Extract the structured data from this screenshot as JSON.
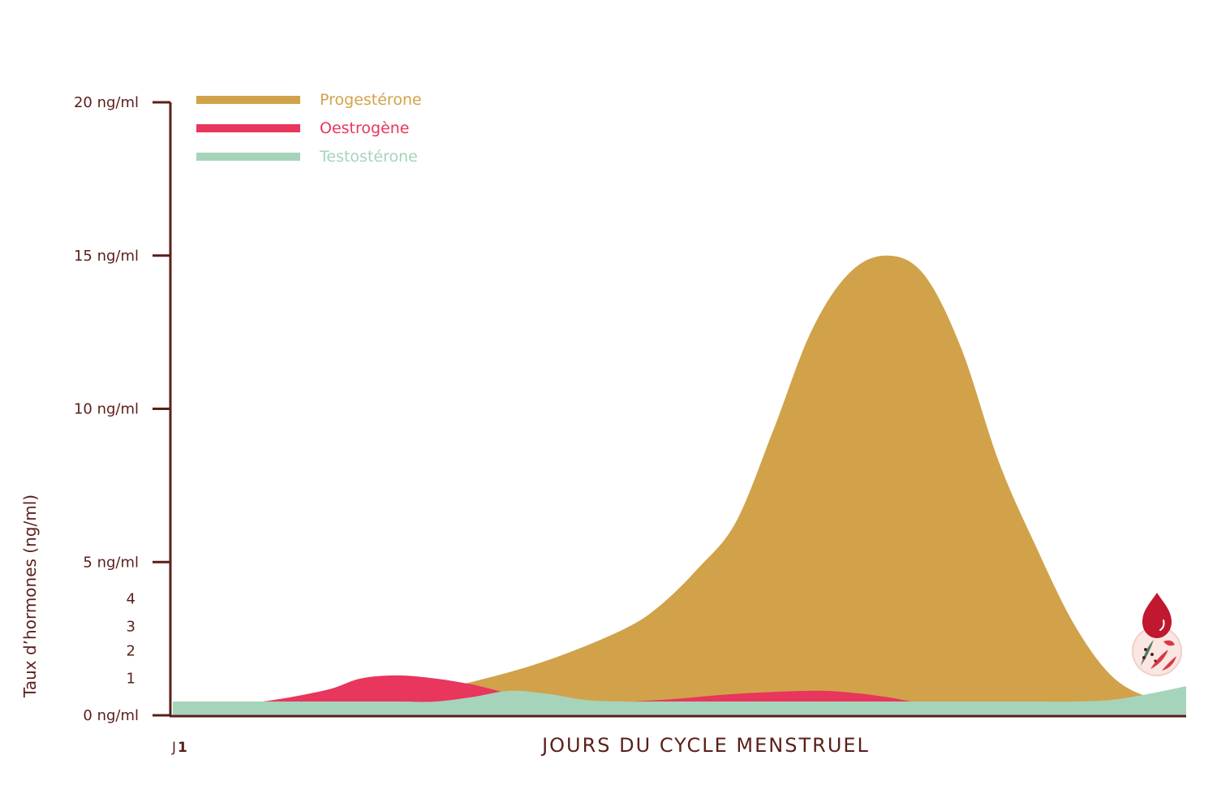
{
  "chart_data": {
    "type": "area",
    "xlabel": "JOURS DU CYCLE MENSTRUEL",
    "ylabel": "Taux d’hormones (ng/ml)",
    "ylim": [
      0,
      20
    ],
    "xlim": [
      1,
      28
    ],
    "start_day_prefix": "J",
    "start_day": "1",
    "y_ticks": [
      {
        "value": 0,
        "label": "0 ng/ml"
      },
      {
        "value": 5,
        "label": "5 ng/ml"
      },
      {
        "value": 10,
        "label": "10 ng/ml"
      },
      {
        "value": 15,
        "label": "15 ng/ml"
      },
      {
        "value": 20,
        "label": "20 ng/ml"
      }
    ],
    "y_minor_labels": [
      {
        "value": 1.2,
        "label": "1"
      },
      {
        "value": 2.1,
        "label": "2"
      },
      {
        "value": 2.9,
        "label": "3"
      },
      {
        "value": 3.8,
        "label": "4"
      }
    ],
    "legend_position": "top-left",
    "grid": false,
    "series": [
      {
        "name": "Progestérone",
        "color": "#d1a24a",
        "x": [
          1,
          3,
          5,
          7,
          9,
          11,
          13,
          14,
          15,
          16,
          17,
          18,
          19,
          20,
          21,
          22,
          23,
          24,
          25,
          26,
          27,
          28
        ],
        "y": [
          0.4,
          0.4,
          0.5,
          0.6,
          1.1,
          1.8,
          2.8,
          3.6,
          4.8,
          6.3,
          9.3,
          12.5,
          14.4,
          15.0,
          14.4,
          12.0,
          8.3,
          5.5,
          3.0,
          1.3,
          0.6,
          0.5
        ]
      },
      {
        "name": "Oestrogène",
        "color": "#e8365c",
        "x": [
          1,
          3,
          5,
          6,
          7,
          8,
          9,
          10,
          11,
          12,
          14,
          16,
          18,
          19,
          20,
          21,
          22,
          24,
          26,
          28
        ],
        "y": [
          0.4,
          0.4,
          0.8,
          1.2,
          1.3,
          1.2,
          1.0,
          0.7,
          0.5,
          0.4,
          0.5,
          0.7,
          0.8,
          0.75,
          0.6,
          0.4,
          0.4,
          0.4,
          0.4,
          0.5
        ]
      },
      {
        "name": "Testostérone",
        "color": "#a5d4bb",
        "x": [
          1,
          3,
          5,
          7,
          8,
          9,
          10,
          11,
          12,
          13,
          14,
          16,
          18,
          20,
          22,
          24,
          25,
          26,
          27,
          28
        ],
        "y": [
          0.45,
          0.45,
          0.45,
          0.45,
          0.45,
          0.6,
          0.8,
          0.7,
          0.5,
          0.45,
          0.45,
          0.45,
          0.45,
          0.45,
          0.45,
          0.45,
          0.45,
          0.5,
          0.7,
          0.95
        ]
      }
    ]
  },
  "menstruation_icon": "blood-drop-flower-icon",
  "colors": {
    "axis": "#5a1f1a",
    "drop": "#c0182e"
  }
}
